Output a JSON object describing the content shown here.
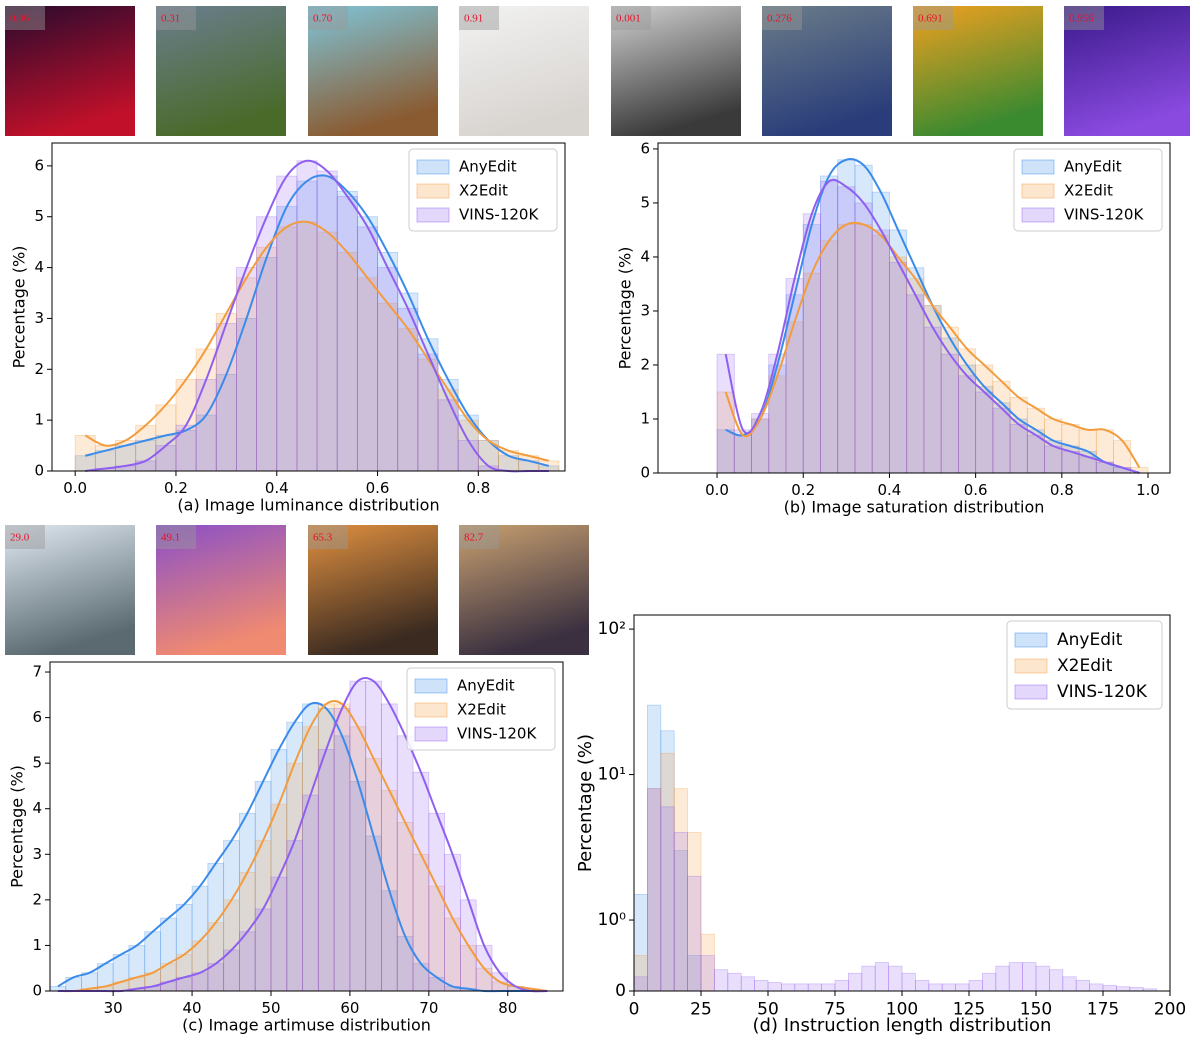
{
  "chart_data": [
    {
      "type": "histogram",
      "title": "(a) Image luminance distribution",
      "ylabel": "Percentage (%)",
      "image_labels": [
        "0.06",
        "0.31",
        "0.70",
        "0.91"
      ],
      "kde": true,
      "legend": "upper right",
      "xlim": [
        -0.046,
        0.972
      ],
      "ylim": [
        0,
        6.45
      ],
      "xticks": [
        {
          "value": 0,
          "label": "0.0"
        },
        0.2,
        0.4,
        0.6,
        0.8
      ],
      "yticks": [
        0,
        1,
        2,
        3,
        4,
        5,
        6
      ],
      "bins": [
        0,
        0.04,
        0.08,
        0.12,
        0.16,
        0.2,
        0.24,
        0.28,
        0.32,
        0.36,
        0.4,
        0.44,
        0.48,
        0.52,
        0.56,
        0.6,
        0.64,
        0.68,
        0.72,
        0.76,
        0.8,
        0.84,
        0.88,
        0.92,
        0.96
      ],
      "series": [
        {
          "name": "AnyEdit",
          "color": "#3b8beb",
          "values": [
            0.3,
            0.4,
            0.5,
            0.6,
            0.7,
            0.8,
            1.1,
            1.9,
            3.0,
            4.2,
            5.2,
            5.7,
            5.8,
            5.5,
            5.0,
            4.3,
            3.5,
            2.6,
            1.8,
            1.1,
            0.6,
            0.3,
            0.2,
            0.1
          ]
        },
        {
          "name": "X2Edit",
          "color": "#f39c3d",
          "values": [
            0.7,
            0.5,
            0.6,
            0.9,
            1.3,
            1.8,
            2.4,
            3.1,
            3.8,
            4.4,
            4.8,
            4.9,
            4.7,
            4.3,
            3.8,
            3.3,
            2.8,
            2.2,
            1.6,
            1.0,
            0.6,
            0.4,
            0.3,
            0.2
          ]
        },
        {
          "name": "VINS-120K",
          "color": "#8f5ff0",
          "values": [
            0,
            0.05,
            0.1,
            0.2,
            0.5,
            0.9,
            1.8,
            2.9,
            4.0,
            5.0,
            5.8,
            6.1,
            5.9,
            5.4,
            4.8,
            4.0,
            3.2,
            2.3,
            1.4,
            0.6,
            0.1,
            0,
            0,
            0
          ]
        }
      ]
    },
    {
      "type": "histogram",
      "title": "(b) Image saturation distribution",
      "ylabel": "Percentage (%)",
      "image_labels": [
        "0.001",
        "0.276",
        "0.691",
        "0.956"
      ],
      "kde": true,
      "legend": "upper right",
      "xlim": [
        -0.137,
        1.051
      ],
      "ylim": [
        0,
        6.11
      ],
      "xticks": [
        {
          "value": 0,
          "label": "0.0"
        },
        0.2,
        0.4,
        0.6,
        0.8,
        {
          "value": 1,
          "label": "1.0"
        }
      ],
      "yticks": [
        0,
        1,
        2,
        3,
        4,
        5,
        6
      ],
      "bins": [
        0,
        0.04,
        0.08,
        0.12,
        0.16,
        0.2,
        0.24,
        0.28,
        0.32,
        0.36,
        0.4,
        0.44,
        0.48,
        0.52,
        0.56,
        0.6,
        0.64,
        0.68,
        0.72,
        0.76,
        0.8,
        0.84,
        0.88,
        0.92,
        0.96,
        1.0
      ],
      "series": [
        {
          "name": "AnyEdit",
          "color": "#3b8beb",
          "values": [
            0.8,
            0.7,
            1.0,
            2.0,
            3.3,
            4.6,
            5.5,
            5.8,
            5.7,
            5.2,
            4.5,
            3.8,
            3.1,
            2.5,
            2.0,
            1.6,
            1.3,
            1.0,
            0.8,
            0.6,
            0.5,
            0.4,
            0.2,
            0.1,
            0.0
          ]
        },
        {
          "name": "X2Edit",
          "color": "#f39c3d",
          "values": [
            1.5,
            0.7,
            1.0,
            1.8,
            2.8,
            3.7,
            4.3,
            4.6,
            4.6,
            4.4,
            4.0,
            3.6,
            3.1,
            2.7,
            2.3,
            2.0,
            1.7,
            1.4,
            1.2,
            1.0,
            0.9,
            0.8,
            0.8,
            0.6,
            0.1
          ]
        },
        {
          "name": "VINS-120K",
          "color": "#8f5ff0",
          "values": [
            2.2,
            0.8,
            1.1,
            2.2,
            3.6,
            4.8,
            5.4,
            5.3,
            5.0,
            4.5,
            3.9,
            3.3,
            2.7,
            2.2,
            1.8,
            1.5,
            1.2,
            0.9,
            0.7,
            0.5,
            0.4,
            0.3,
            0.2,
            0.1,
            0.0
          ]
        }
      ]
    },
    {
      "type": "histogram",
      "title": "(c) Image artimuse distribution",
      "ylabel": "Percentage (%)",
      "image_labels": [
        "29.0",
        "49.1",
        "65.3",
        "82.7"
      ],
      "kde": true,
      "legend": "upper right",
      "xlim": [
        22,
        87
      ],
      "ylim": [
        0,
        7.22
      ],
      "xticks": [
        30,
        40,
        50,
        60,
        70,
        80
      ],
      "yticks": [
        0,
        1,
        2,
        3,
        4,
        5,
        6,
        7
      ],
      "bins": [
        22,
        24,
        26,
        28,
        30,
        32,
        34,
        36,
        38,
        40,
        42,
        44,
        46,
        48,
        50,
        52,
        54,
        56,
        58,
        60,
        62,
        64,
        66,
        68,
        70,
        72,
        74,
        76,
        78,
        80,
        82,
        84,
        86
      ],
      "series": [
        {
          "name": "AnyEdit",
          "color": "#3b8beb",
          "values": [
            0.1,
            0.3,
            0.4,
            0.6,
            0.8,
            1.0,
            1.3,
            1.6,
            1.9,
            2.3,
            2.8,
            3.3,
            3.9,
            4.6,
            5.3,
            5.9,
            6.3,
            6.2,
            5.6,
            4.6,
            3.4,
            2.2,
            1.2,
            0.6,
            0.3,
            0.1,
            0.05,
            0,
            0,
            0,
            0,
            0
          ]
        },
        {
          "name": "X2Edit",
          "color": "#f39c3d",
          "values": [
            0,
            0,
            0.05,
            0.1,
            0.2,
            0.3,
            0.4,
            0.6,
            0.8,
            1.1,
            1.5,
            2.0,
            2.6,
            3.3,
            4.1,
            5.0,
            5.8,
            6.3,
            6.3,
            5.8,
            5.1,
            4.4,
            3.7,
            3.0,
            2.3,
            1.6,
            1.0,
            0.5,
            0.2,
            0.1,
            0.05,
            0
          ]
        },
        {
          "name": "VINS-120K",
          "color": "#8f5ff0",
          "values": [
            0,
            0,
            0,
            0,
            0,
            0.05,
            0.1,
            0.2,
            0.3,
            0.4,
            0.6,
            0.9,
            1.3,
            1.8,
            2.5,
            3.3,
            4.3,
            5.3,
            6.2,
            6.8,
            6.8,
            6.3,
            5.6,
            4.8,
            3.9,
            3.0,
            2.0,
            1.0,
            0.4,
            0.1,
            0,
            0
          ]
        }
      ]
    },
    {
      "type": "histogram",
      "title": "(d) Instruction length distribution",
      "ylabel": "Percentage (%)",
      "kde": false,
      "legend": "upper right",
      "yscale": "symlog",
      "xlim": [
        0,
        200
      ],
      "ylim": [
        0,
        125
      ],
      "xticks": [
        0,
        25,
        50,
        75,
        100,
        125,
        150,
        175,
        200
      ],
      "yticks": [
        0,
        {
          "value": 1,
          "label": "10⁰"
        },
        {
          "value": 10,
          "label": "10¹"
        },
        {
          "value": 100,
          "label": "10²"
        }
      ],
      "bins": [
        0,
        5,
        10,
        15,
        20,
        25,
        30,
        35,
        40,
        45,
        50,
        55,
        60,
        65,
        70,
        75,
        80,
        85,
        90,
        95,
        100,
        105,
        110,
        115,
        120,
        125,
        130,
        135,
        140,
        145,
        150,
        155,
        160,
        165,
        170,
        175,
        180,
        185,
        190,
        195
      ],
      "series": [
        {
          "name": "AnyEdit",
          "color": "#3b8beb",
          "values": [
            1.5,
            30,
            20,
            3,
            0.5,
            0,
            0,
            0,
            0,
            0,
            0,
            0,
            0,
            0,
            0,
            0,
            0,
            0,
            0,
            0,
            0,
            0,
            0,
            0,
            0,
            0,
            0,
            0,
            0,
            0,
            0,
            0,
            0,
            0,
            0,
            0,
            0,
            0,
            0
          ]
        },
        {
          "name": "X2Edit",
          "color": "#f39c3d",
          "values": [
            0.5,
            8,
            14,
            8,
            4,
            0.8,
            0,
            0,
            0,
            0,
            0,
            0,
            0,
            0,
            0,
            0,
            0,
            0,
            0,
            0,
            0,
            0,
            0,
            0,
            0,
            0,
            0,
            0,
            0,
            0,
            0,
            0,
            0,
            0,
            0,
            0,
            0,
            0,
            0
          ]
        },
        {
          "name": "VINS-120K",
          "color": "#8f5ff0",
          "values": [
            0.2,
            8,
            6,
            4,
            2,
            0.5,
            0.3,
            0.25,
            0.2,
            0.15,
            0.12,
            0.1,
            0.1,
            0.1,
            0.1,
            0.15,
            0.25,
            0.35,
            0.4,
            0.35,
            0.25,
            0.15,
            0.1,
            0.1,
            0.1,
            0.15,
            0.25,
            0.35,
            0.4,
            0.4,
            0.35,
            0.3,
            0.2,
            0.15,
            0.1,
            0.08,
            0.06,
            0.05,
            0.03
          ]
        }
      ]
    }
  ]
}
